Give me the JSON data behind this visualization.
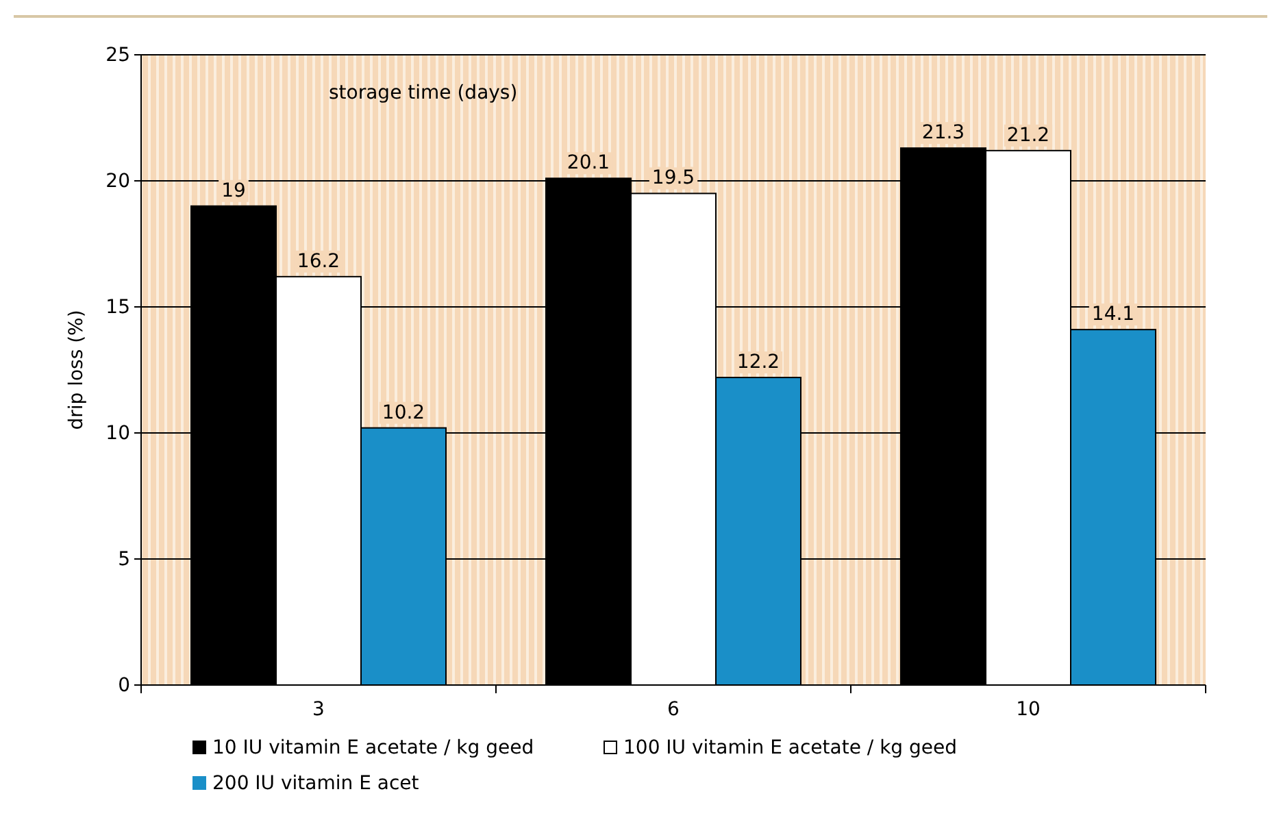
{
  "chart_data": {
    "type": "bar",
    "xlabel": "storage time (days)",
    "ylabel": "drip loss (%)",
    "categories": [
      "3",
      "6",
      "10"
    ],
    "series": [
      {
        "name": "10 IU vitamin E acetate / kg geed",
        "color": "#000000",
        "values": [
          19,
          20.1,
          21.3
        ]
      },
      {
        "name": "100 IU vitamin E acetate / kg geed",
        "color": "#ffffff",
        "values": [
          16.2,
          19.5,
          21.2
        ]
      },
      {
        "name": "200 IU vitamin E acet",
        "color": "#1a8fc8",
        "values": [
          10.2,
          12.2,
          14.1
        ]
      }
    ],
    "ylim": [
      0,
      25
    ],
    "yticks": [
      0,
      5,
      10,
      15,
      20,
      25
    ],
    "grid": "y",
    "data_labels": true,
    "legend": "bottom"
  }
}
